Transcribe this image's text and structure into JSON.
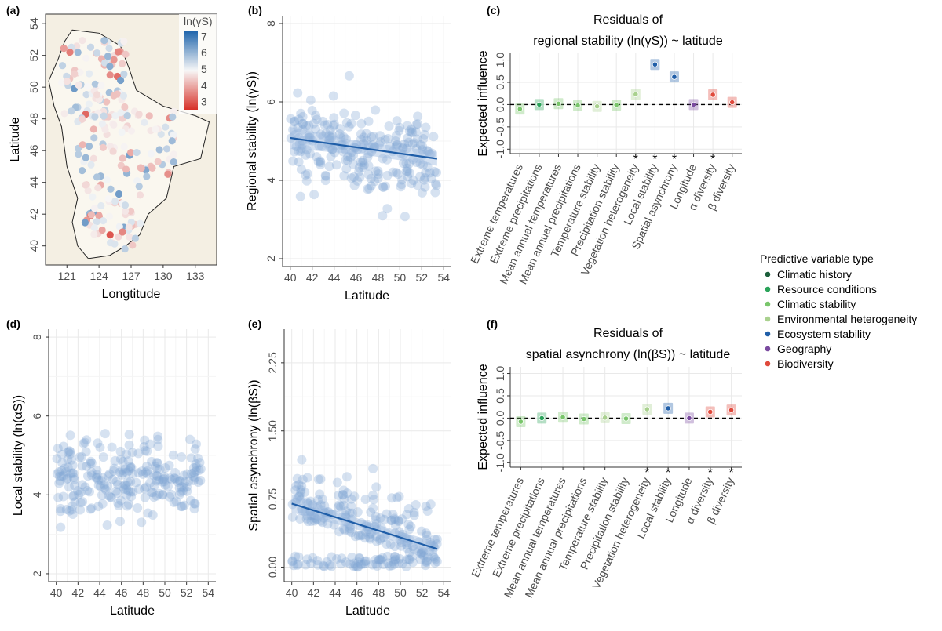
{
  "colors": {
    "point": "#7fa6d4",
    "trend": "#1f5ea8",
    "ribbon": "#9dbbdf",
    "grid": "#e9e9e9",
    "land": "#f4efe3",
    "types": {
      "Climatic history": "#1b5e3a",
      "Resource conditions": "#2aa35a",
      "Climatic stability": "#79c66b",
      "Environmental heterogeneity": "#a9d18e",
      "Ecosystem stability": "#1f5ea8",
      "Geography": "#7a4aa0",
      "Biodiversity": "#e0493b"
    }
  },
  "legend": {
    "title": "Predictive variable type",
    "items": [
      "Climatic history",
      "Resource conditions",
      "Climatic stability",
      "Environmental heterogeneity",
      "Ecosystem stability",
      "Geography",
      "Biodiversity"
    ]
  },
  "panels": {
    "a": {
      "tag": "(a)"
    },
    "b": {
      "tag": "(b)"
    },
    "c": {
      "tag": "(c)",
      "title1": "Residuals of",
      "title2": "regional stability (ln(γS)) ~ latitude"
    },
    "d": {
      "tag": "(d)"
    },
    "e": {
      "tag": "(e)"
    },
    "f": {
      "tag": "(f)",
      "title1": "Residuals of",
      "title2": "spatial asynchrony (ln(βS)) ~ latitude"
    }
  },
  "chart_data": [
    {
      "id": "a",
      "type": "scatter",
      "xlabel": "Longtitude",
      "ylabel": "Latitude",
      "xticks": [
        121,
        124,
        127,
        130,
        133
      ],
      "yticks": [
        40,
        42,
        44,
        46,
        48,
        50,
        52,
        54
      ],
      "xlim": [
        119,
        135
      ],
      "ylim": [
        38.8,
        54.6
      ],
      "colorbar": {
        "label": "ln(γS)",
        "ticks": [
          3,
          4,
          5,
          6,
          7
        ],
        "range": [
          2.5,
          7.3
        ],
        "low": "#d73027",
        "mid": "#f7f7f7",
        "high": "#2166ac"
      }
    },
    {
      "id": "b",
      "type": "scatter",
      "xlabel": "Latitude",
      "ylabel": "Regional stability (ln(γS))",
      "xticks": [
        40,
        42,
        44,
        46,
        48,
        50,
        52,
        54
      ],
      "yticks": [
        2,
        4,
        6,
        8
      ],
      "xlim": [
        39.3,
        54.7
      ],
      "ylim": [
        1.8,
        8.2
      ],
      "trend": {
        "x": [
          40,
          53.4
        ],
        "y": [
          5.08,
          4.55
        ],
        "ribbon": [
          0.28,
          0.18
        ]
      }
    },
    {
      "id": "c",
      "type": "scatter",
      "xlabel": "",
      "ylabel": "Expected influence",
      "yticks": [
        -1.0,
        -0.5,
        0.0,
        0.5,
        1.0
      ],
      "ylim": [
        -1.1,
        1.15
      ],
      "categories": [
        "Extreme temperatures",
        "Extreme precipitations",
        "Mean annual temperatures",
        "Mean annual precipitations",
        "Temperature stability",
        "Precipitation stability",
        "Vegetation heterogeneity",
        "Local stability",
        "Spatial asynchrony",
        "Longitude",
        "α diversity",
        "β diversity"
      ],
      "values": [
        -0.1,
        0.0,
        0.02,
        -0.02,
        -0.04,
        -0.01,
        0.23,
        0.9,
        0.62,
        0.0,
        0.22,
        0.05
      ],
      "types": [
        "Climatic stability",
        "Resource conditions",
        "Climatic stability",
        "Climatic stability",
        "Environmental heterogeneity",
        "Climatic stability",
        "Environmental heterogeneity",
        "Ecosystem stability",
        "Ecosystem stability",
        "Geography",
        "Biodiversity",
        "Biodiversity"
      ],
      "significant": [
        false,
        false,
        false,
        false,
        false,
        false,
        true,
        true,
        true,
        false,
        true,
        false
      ]
    },
    {
      "id": "d",
      "type": "scatter",
      "xlabel": "Latitude",
      "ylabel": "Local stability (ln(αS))",
      "xticks": [
        40,
        42,
        44,
        46,
        48,
        50,
        52,
        54
      ],
      "yticks": [
        2,
        4,
        6,
        8
      ],
      "xlim": [
        39.3,
        54.7
      ],
      "ylim": [
        1.8,
        8.2
      ]
    },
    {
      "id": "e",
      "type": "scatter",
      "xlabel": "Latitude",
      "ylabel": "Spatial asynchrony (ln(βS))",
      "xticks": [
        40,
        42,
        44,
        46,
        48,
        50,
        52,
        54
      ],
      "yticks": [
        "0.00",
        "0.75",
        "1.50",
        "2.25"
      ],
      "xlim": [
        39.3,
        54.7
      ],
      "ylim": [
        -0.16,
        2.62
      ],
      "trend": {
        "x": [
          40,
          53.4
        ],
        "y": [
          0.7,
          0.2
        ],
        "ribbon": [
          0.1,
          0.07
        ]
      }
    },
    {
      "id": "f",
      "type": "scatter",
      "xlabel": "",
      "ylabel": "Expected influence",
      "yticks": [
        -1.0,
        -0.5,
        0.0,
        0.5,
        1.0
      ],
      "ylim": [
        -1.1,
        1.15
      ],
      "categories": [
        "Extreme temperatures",
        "Extreme precipitations",
        "Mean annual temperatures",
        "Mean annual precipitations",
        "Temperature stability",
        "Precipitation stability",
        "Vegetation heterogeneity",
        "Local stability",
        "Longitude",
        "α diversity",
        "β diversity"
      ],
      "values": [
        -0.08,
        0.0,
        0.02,
        -0.02,
        0.01,
        -0.01,
        0.2,
        0.22,
        0.0,
        0.14,
        0.18
      ],
      "types": [
        "Climatic stability",
        "Resource conditions",
        "Climatic stability",
        "Climatic stability",
        "Environmental heterogeneity",
        "Climatic stability",
        "Environmental heterogeneity",
        "Ecosystem stability",
        "Geography",
        "Biodiversity",
        "Biodiversity"
      ],
      "significant": [
        false,
        false,
        false,
        false,
        false,
        false,
        true,
        true,
        false,
        true,
        true
      ]
    }
  ]
}
